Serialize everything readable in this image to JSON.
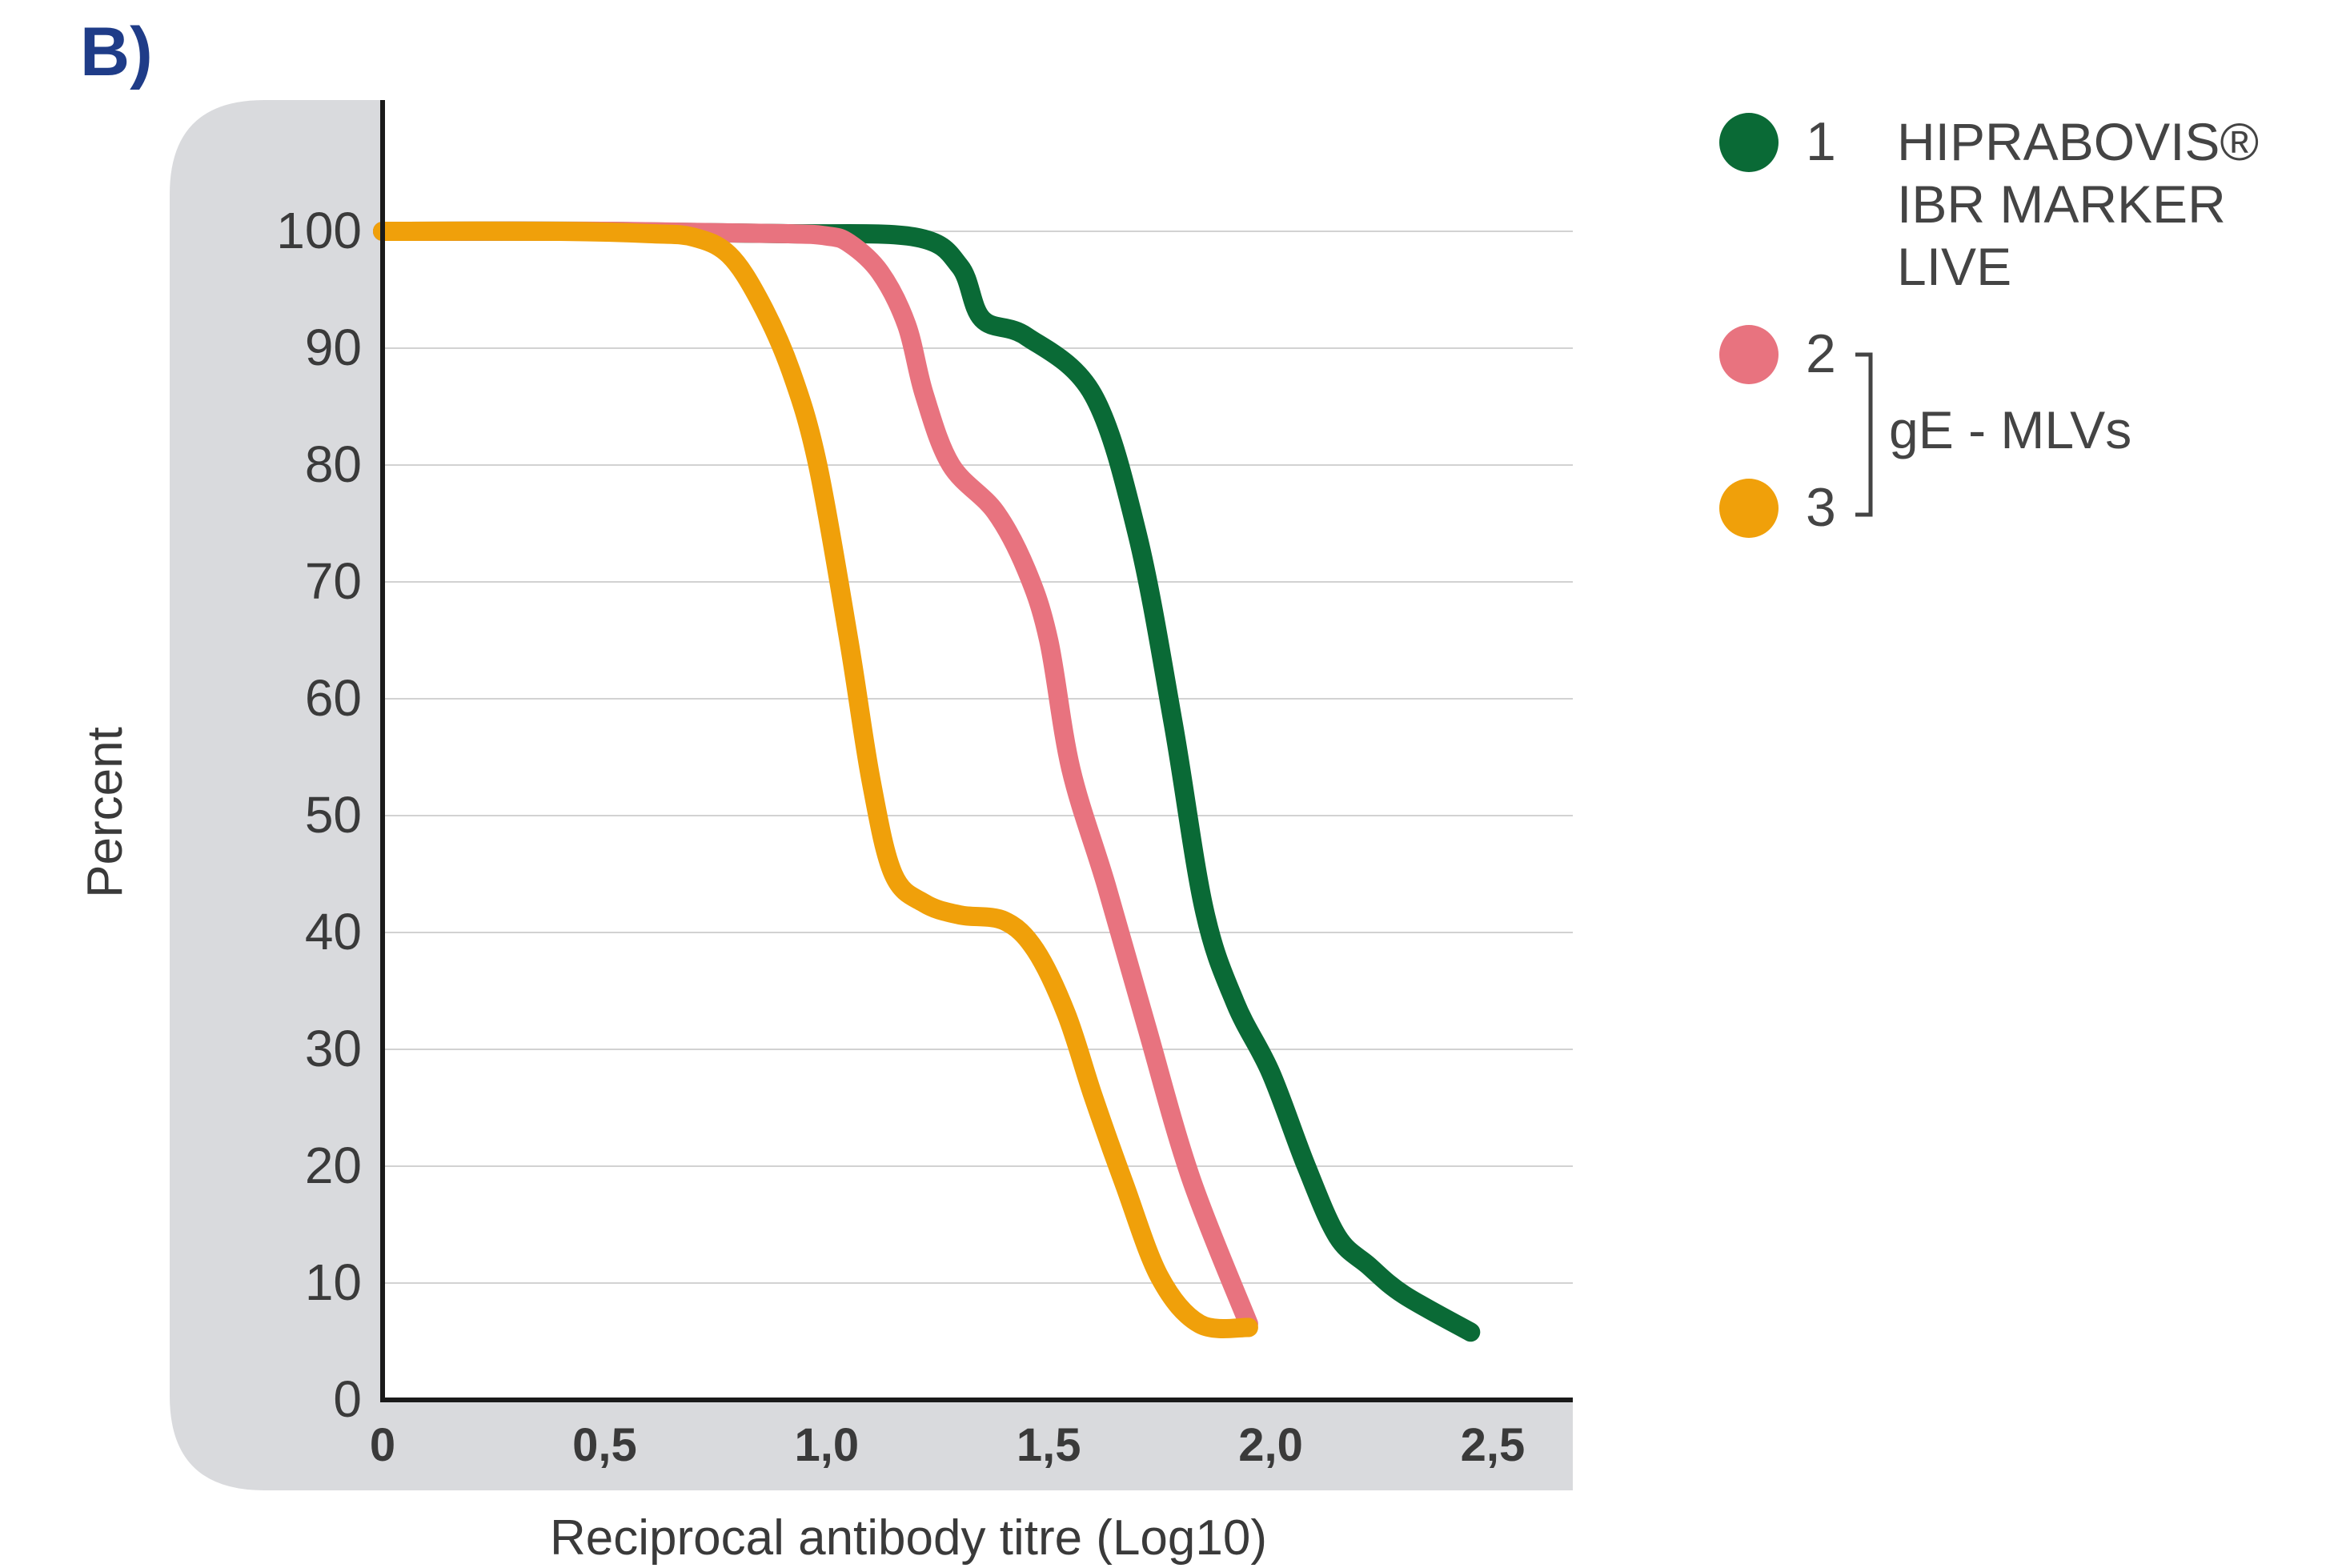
{
  "panel_label": "B)",
  "chart_data": {
    "type": "line",
    "xlabel": "Reciprocal antibody titre (Log10)",
    "ylabel": "Percent",
    "xlim": [
      0,
      2.5
    ],
    "ylim": [
      0,
      100
    ],
    "x_ticks": [
      "0",
      "0,5",
      "1,0",
      "1,5",
      "2,0",
      "2,5"
    ],
    "x_tick_values": [
      0,
      0.5,
      1.0,
      1.5,
      2.0,
      2.5
    ],
    "y_ticks": [
      "0",
      "10",
      "20",
      "30",
      "40",
      "50",
      "60",
      "70",
      "80",
      "90",
      "100"
    ],
    "y_tick_values": [
      0,
      10,
      20,
      30,
      40,
      50,
      60,
      70,
      80,
      90,
      100
    ],
    "grid": "horizontal",
    "legend_placement": "top-right",
    "series": [
      {
        "name": "1",
        "color": "#0a6a36",
        "x": [
          0,
          0.5,
          0.9,
          1.2,
          1.3,
          1.35,
          1.45,
          1.6,
          1.7,
          1.78,
          1.85,
          1.92,
          2.0,
          2.08,
          2.15,
          2.22,
          2.3,
          2.45
        ],
        "y": [
          100,
          100,
          99.8,
          99.5,
          97,
          92.5,
          91,
          86,
          74,
          58,
          42,
          34,
          28,
          20,
          14,
          11.5,
          9,
          5.8
        ]
      },
      {
        "name": "2",
        "color": "#e8737f",
        "x": [
          0,
          0.5,
          0.9,
          1.0,
          1.05,
          1.12,
          1.18,
          1.22,
          1.28,
          1.38,
          1.45,
          1.5,
          1.55,
          1.63,
          1.72,
          1.82,
          1.95
        ],
        "y": [
          100,
          100,
          99.8,
          99.6,
          99,
          96.5,
          92,
          86,
          80,
          76,
          71,
          65,
          54,
          44,
          32,
          19,
          6.5
        ]
      },
      {
        "name": "3",
        "color": "#f0a00a",
        "x": [
          0,
          0.4,
          0.6,
          0.7,
          0.78,
          0.85,
          0.92,
          0.98,
          1.05,
          1.1,
          1.15,
          1.22,
          1.3,
          1.4,
          1.47,
          1.54,
          1.6,
          1.67,
          1.75,
          1.84,
          1.95
        ],
        "y": [
          100,
          100,
          99.8,
          99.5,
          98,
          94,
          88,
          80,
          65,
          53,
          45,
          42.5,
          41.5,
          41,
          38.5,
          33,
          26,
          18.5,
          10.5,
          6.5,
          6.2
        ]
      }
    ],
    "legend": [
      {
        "number": "1",
        "color": "#0a6a36",
        "lines": [
          "HIPRABOVIS®",
          "IBR MARKER",
          "LIVE"
        ]
      },
      {
        "number": "2",
        "color": "#e8737f"
      },
      {
        "number": "3",
        "color": "#f0a00a"
      }
    ],
    "legend_group_label": "gE - MLVs"
  }
}
